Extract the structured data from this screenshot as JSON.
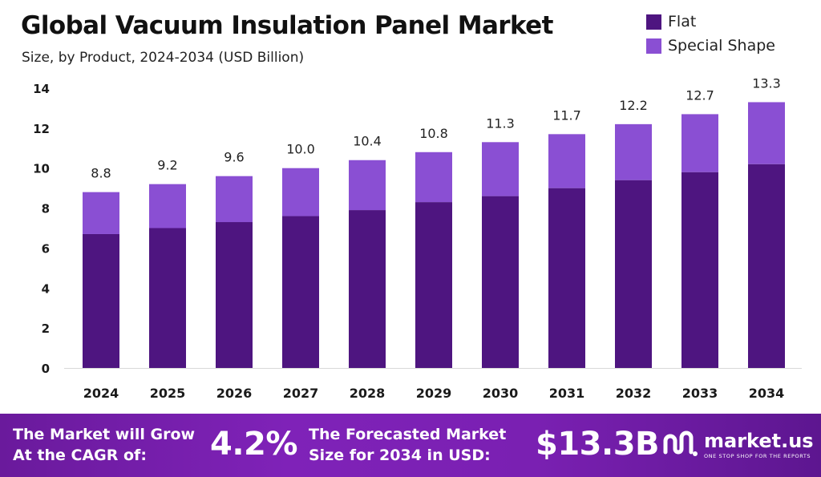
{
  "header": {
    "title": "Global Vacuum Insulation Panel Market",
    "subtitle": "Size, by Product, 2024-2034 (USD Billion)"
  },
  "legend": [
    {
      "label": "Flat",
      "color": "#4e1580"
    },
    {
      "label": "Special Shape",
      "color": "#8a4fd3"
    }
  ],
  "chart_data": {
    "type": "bar",
    "stacked": true,
    "categories": [
      "2024",
      "2025",
      "2026",
      "2027",
      "2028",
      "2029",
      "2030",
      "2031",
      "2032",
      "2033",
      "2034"
    ],
    "series": [
      {
        "name": "Flat",
        "color": "#4e1580",
        "values": [
          6.7,
          7.0,
          7.3,
          7.6,
          7.9,
          8.3,
          8.6,
          9.0,
          9.4,
          9.8,
          10.2
        ]
      },
      {
        "name": "Special Shape",
        "color": "#8a4fd3",
        "values": [
          2.1,
          2.2,
          2.3,
          2.4,
          2.5,
          2.5,
          2.7,
          2.7,
          2.8,
          2.9,
          3.1
        ]
      }
    ],
    "totals": [
      "8.8",
      "9.2",
      "9.6",
      "10.0",
      "10.4",
      "10.8",
      "11.3",
      "11.7",
      "12.2",
      "12.7",
      "13.3"
    ],
    "yticks": [
      "0",
      "2",
      "4",
      "6",
      "8",
      "10",
      "12",
      "14"
    ],
    "ylim": [
      0,
      14
    ],
    "grid": false,
    "legend_position": "top-right"
  },
  "banner": {
    "cagr_text_line1": "The Market will Grow",
    "cagr_text_line2": "At the CAGR of:",
    "cagr_value": "4.2%",
    "forecast_text_line1": "The Forecasted Market",
    "forecast_text_line2": "Size for 2034 in USD:",
    "forecast_value": "$13.3B",
    "brand_name": "market.us",
    "brand_tagline": "ONE STOP SHOP FOR THE REPORTS"
  }
}
